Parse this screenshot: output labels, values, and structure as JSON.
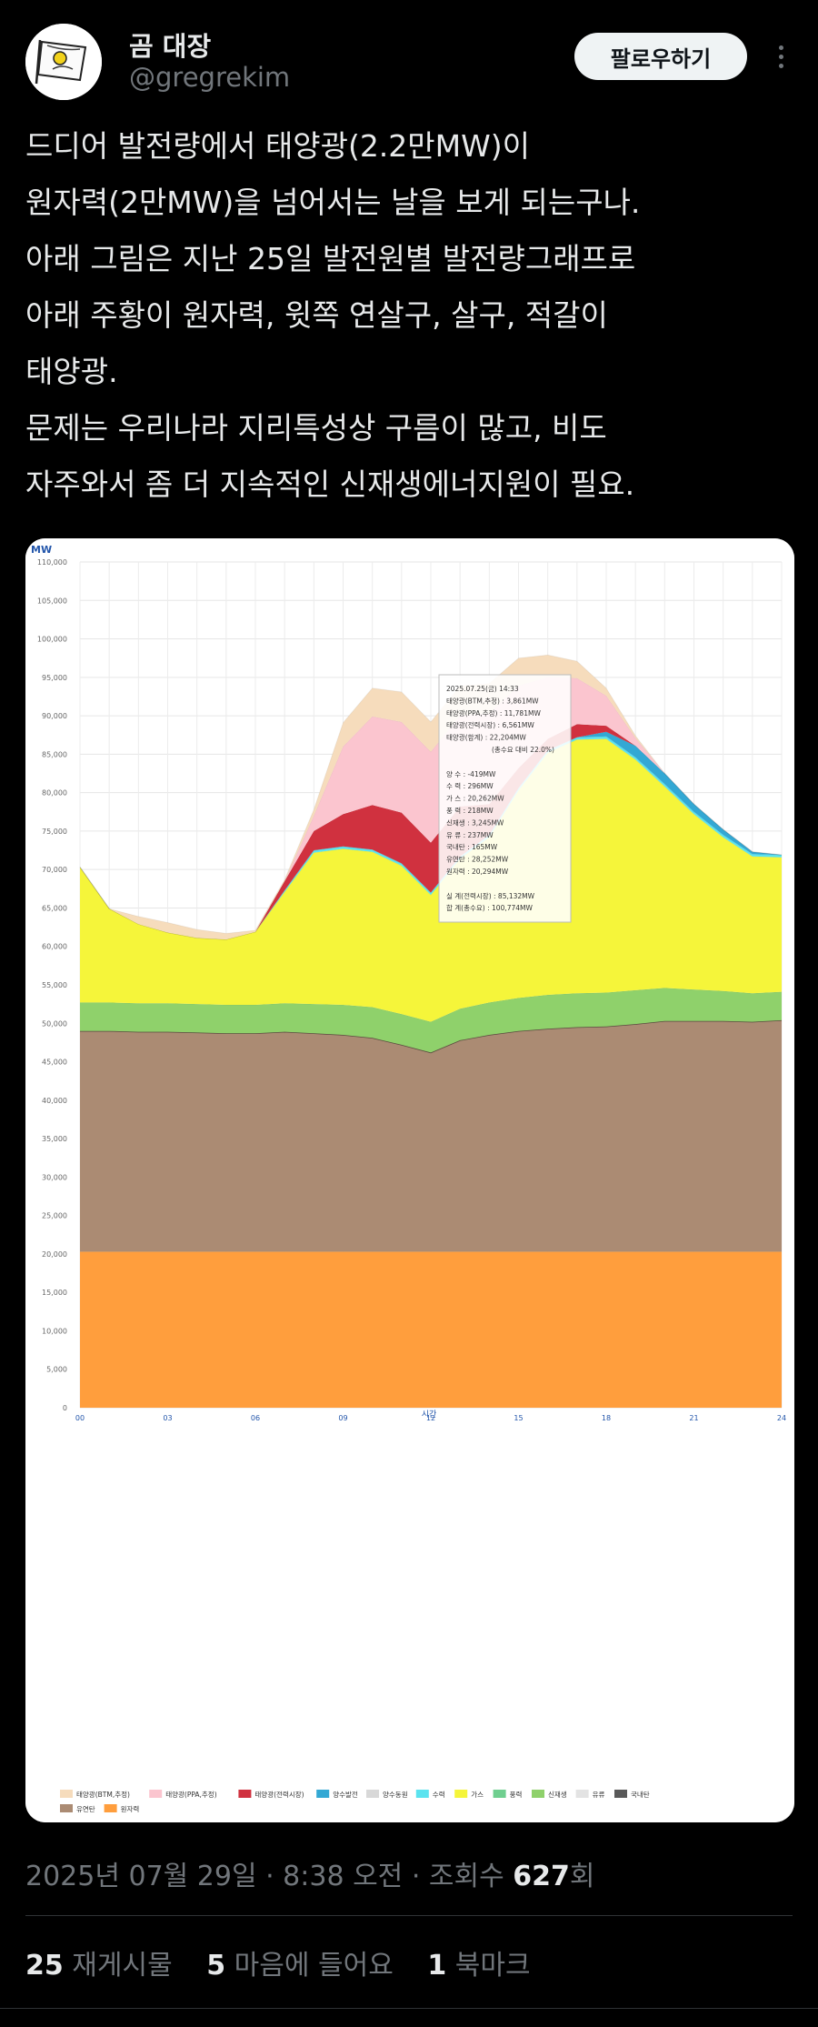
{
  "user": {
    "name": "곰 대장",
    "handle": "@gregrekim"
  },
  "follow_label": "팔로우하기",
  "tweet_lines": [
    "드디어 발전량에서 태양광(2.2만MW)이",
    "원자력(2만MW)을 넘어서는 날을 보게 되는구나.",
    "아래 그림은 지난 25일 발전원별 발전량그래프로",
    "아래 주황이 원자력, 윗쪽 연살구, 살구, 적갈이",
    "태양광.",
    "문제는 우리나라 지리특성상 구름이 많고, 비도",
    "자주와서 좀 더 지속적인 신재생에너지원이 필요."
  ],
  "meta": {
    "date": "2025년 07월 29일 · 8:38 오전 · 조회수 ",
    "views": "627",
    "views_suffix": "회"
  },
  "stats": {
    "reposts_count": "25",
    "reposts_label": "재게시물",
    "likes_count": "5",
    "likes_label": "마음에 들어요",
    "bookmarks_count": "1",
    "bookmarks_label": "북마크"
  },
  "chart_data": {
    "type": "area",
    "ylabel": "MW",
    "xlabel": "시간",
    "ylim": [
      0,
      110000
    ],
    "yticks": [
      "0",
      "5,000",
      "10,000",
      "15,000",
      "20,000",
      "25,000",
      "30,000",
      "35,000",
      "40,000",
      "45,000",
      "50,000",
      "55,000",
      "60,000",
      "65,000",
      "70,000",
      "75,000",
      "80,000",
      "85,000",
      "90,000",
      "95,000",
      "100,000",
      "105,000",
      "110,000"
    ],
    "xticks": [
      "00",
      "03",
      "06",
      "09",
      "12",
      "15",
      "18",
      "21",
      "24"
    ],
    "x": [
      0,
      1,
      2,
      3,
      4,
      5,
      6,
      7,
      8,
      9,
      10,
      11,
      12,
      13,
      14,
      15,
      16,
      17,
      18,
      19,
      20,
      21,
      22,
      23,
      24
    ],
    "series": [
      {
        "name": "원자력",
        "color": "#ff9e3d",
        "values": [
          20300,
          20300,
          20300,
          20300,
          20300,
          20300,
          20300,
          20300,
          20300,
          20300,
          20300,
          20300,
          20300,
          20300,
          20300,
          20300,
          20300,
          20300,
          20300,
          20300,
          20300,
          20300,
          20300,
          20300,
          20300
        ]
      },
      {
        "name": "유연탄",
        "color": "#ab8b73",
        "values": [
          28700,
          28700,
          28600,
          28600,
          28500,
          28400,
          28400,
          28600,
          28400,
          28200,
          27800,
          26900,
          25900,
          27500,
          28200,
          28700,
          29000,
          29200,
          29300,
          29600,
          30000,
          30000,
          30000,
          29900,
          30100
        ]
      },
      {
        "name": "신재생",
        "color": "#8fd16b",
        "values": [
          3700,
          3700,
          3700,
          3700,
          3700,
          3700,
          3700,
          3700,
          3800,
          3900,
          4000,
          4000,
          4000,
          4100,
          4200,
          4300,
          4400,
          4400,
          4400,
          4400,
          4300,
          4100,
          3900,
          3700,
          3700
        ]
      },
      {
        "name": "가스",
        "color": "#f5f53a",
        "values": [
          17600,
          12200,
          10300,
          9200,
          8600,
          8500,
          9500,
          14500,
          19700,
          20300,
          20200,
          19300,
          16500,
          19500,
          21500,
          27000,
          31500,
          33000,
          33000,
          30000,
          26200,
          22800,
          20000,
          17800,
          17500
        ]
      },
      {
        "name": "수력",
        "color": "#5be3ef",
        "values": [
          0,
          0,
          0,
          0,
          0,
          0,
          0,
          200,
          300,
          300,
          300,
          300,
          300,
          300,
          300,
          300,
          300,
          300,
          300,
          300,
          300,
          300,
          300,
          300,
          300
        ]
      },
      {
        "name": "양수발전",
        "color": "#33a8d4",
        "values": [
          0,
          0,
          0,
          0,
          0,
          0,
          0,
          0,
          0,
          0,
          0,
          0,
          0,
          0,
          0,
          0,
          0,
          0,
          600,
          1500,
          1400,
          1000,
          700,
          300,
          0
        ]
      },
      {
        "name": "태양광(전력시장)",
        "color": "#d0313f",
        "values": [
          0,
          0,
          0,
          0,
          0,
          0,
          0,
          1200,
          2500,
          4200,
          5800,
          6600,
          6500,
          6500,
          4000,
          2600,
          1500,
          1700,
          800,
          0,
          0,
          0,
          0,
          0,
          0
        ]
      },
      {
        "name": "태양광(PPA,추정)",
        "color": "#fbc5cf",
        "values": [
          0,
          0,
          0,
          0,
          0,
          0,
          0,
          0,
          2000,
          8800,
          11500,
          11800,
          11800,
          11800,
          11800,
          10700,
          8000,
          6000,
          3900,
          1000,
          0,
          0,
          0,
          0,
          0
        ]
      },
      {
        "name": "태양광(BTM,추정)",
        "color": "#f6dcbc",
        "values": [
          0,
          0,
          1000,
          1300,
          1100,
          800,
          200,
          200,
          800,
          3100,
          3700,
          3900,
          3900,
          3900,
          3900,
          3600,
          2900,
          2200,
          1000,
          300,
          0,
          0,
          0,
          0,
          0
        ]
      }
    ],
    "legend": [
      {
        "label": "태양광(BTM,추정)",
        "color": "#f6dcbc"
      },
      {
        "label": "태양광(PPA,추정)",
        "color": "#fbc5cf"
      },
      {
        "label": "태양광(전력시장)",
        "color": "#d0313f"
      },
      {
        "label": "양수발전",
        "color": "#33a8d4"
      },
      {
        "label": "양수동원",
        "color": "#d8d8d8"
      },
      {
        "label": "수력",
        "color": "#5be3ef"
      },
      {
        "label": "가스",
        "color": "#f5f53a"
      },
      {
        "label": "풍력",
        "color": "#6fcf8f"
      },
      {
        "label": "신재생",
        "color": "#8fd16b"
      },
      {
        "label": "유류",
        "color": "#e3e3e3"
      },
      {
        "label": "국내탄",
        "color": "#595959"
      },
      {
        "label": "유연탄",
        "color": "#ab8b73"
      },
      {
        "label": "원자력",
        "color": "#ff9e3d"
      }
    ],
    "tooltip": {
      "lines": [
        "2025.07.25(금) 14:33",
        "태양광(BTM,추정) : 3,861MW",
        "태양광(PPA,추정) : 11,781MW",
        "태양광(전력시장) : 6,561MW",
        "태양광(합계) : 22,204MW",
        "(총수요 대비 22.0%)",
        "",
        "양    수 : -419MW",
        "수    력 : 296MW",
        "가    스 : 20,262MW",
        "풍    력 : 218MW",
        "신재생 : 3,245MW",
        "유    류 : 237MW",
        "국내탄 : 165MW",
        "유연탄 : 28,252MW",
        "원자력 : 20,294MW",
        "",
        "실    계(전력시장) : 85,132MW",
        "합    계(총수요) : 100,774MW"
      ]
    },
    "grid": true
  }
}
